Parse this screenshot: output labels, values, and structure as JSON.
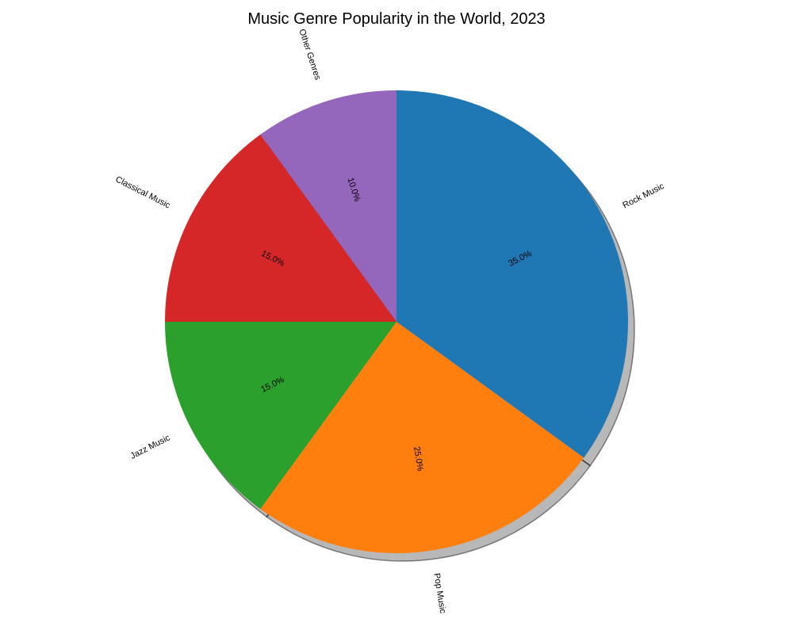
{
  "chart_data": {
    "type": "pie",
    "title": "Music Genre Popularity in the World, 2023",
    "categories": [
      "Rock Music",
      "Pop Music",
      "Jazz Music",
      "Classical Music",
      "Other Genres"
    ],
    "values": [
      35.0,
      25.0,
      15.0,
      15.0,
      10.0
    ],
    "percent_labels": [
      "35.0%",
      "25.0%",
      "15.0%",
      "15.0%",
      "10.0%"
    ],
    "colors": [
      "#1f77b4",
      "#ff7f0e",
      "#2ca02c",
      "#d62728",
      "#9467bd"
    ],
    "start_angle_deg": 90,
    "direction": "clockwise",
    "shadow": true,
    "label_rotation": "radial",
    "legend": "none"
  }
}
